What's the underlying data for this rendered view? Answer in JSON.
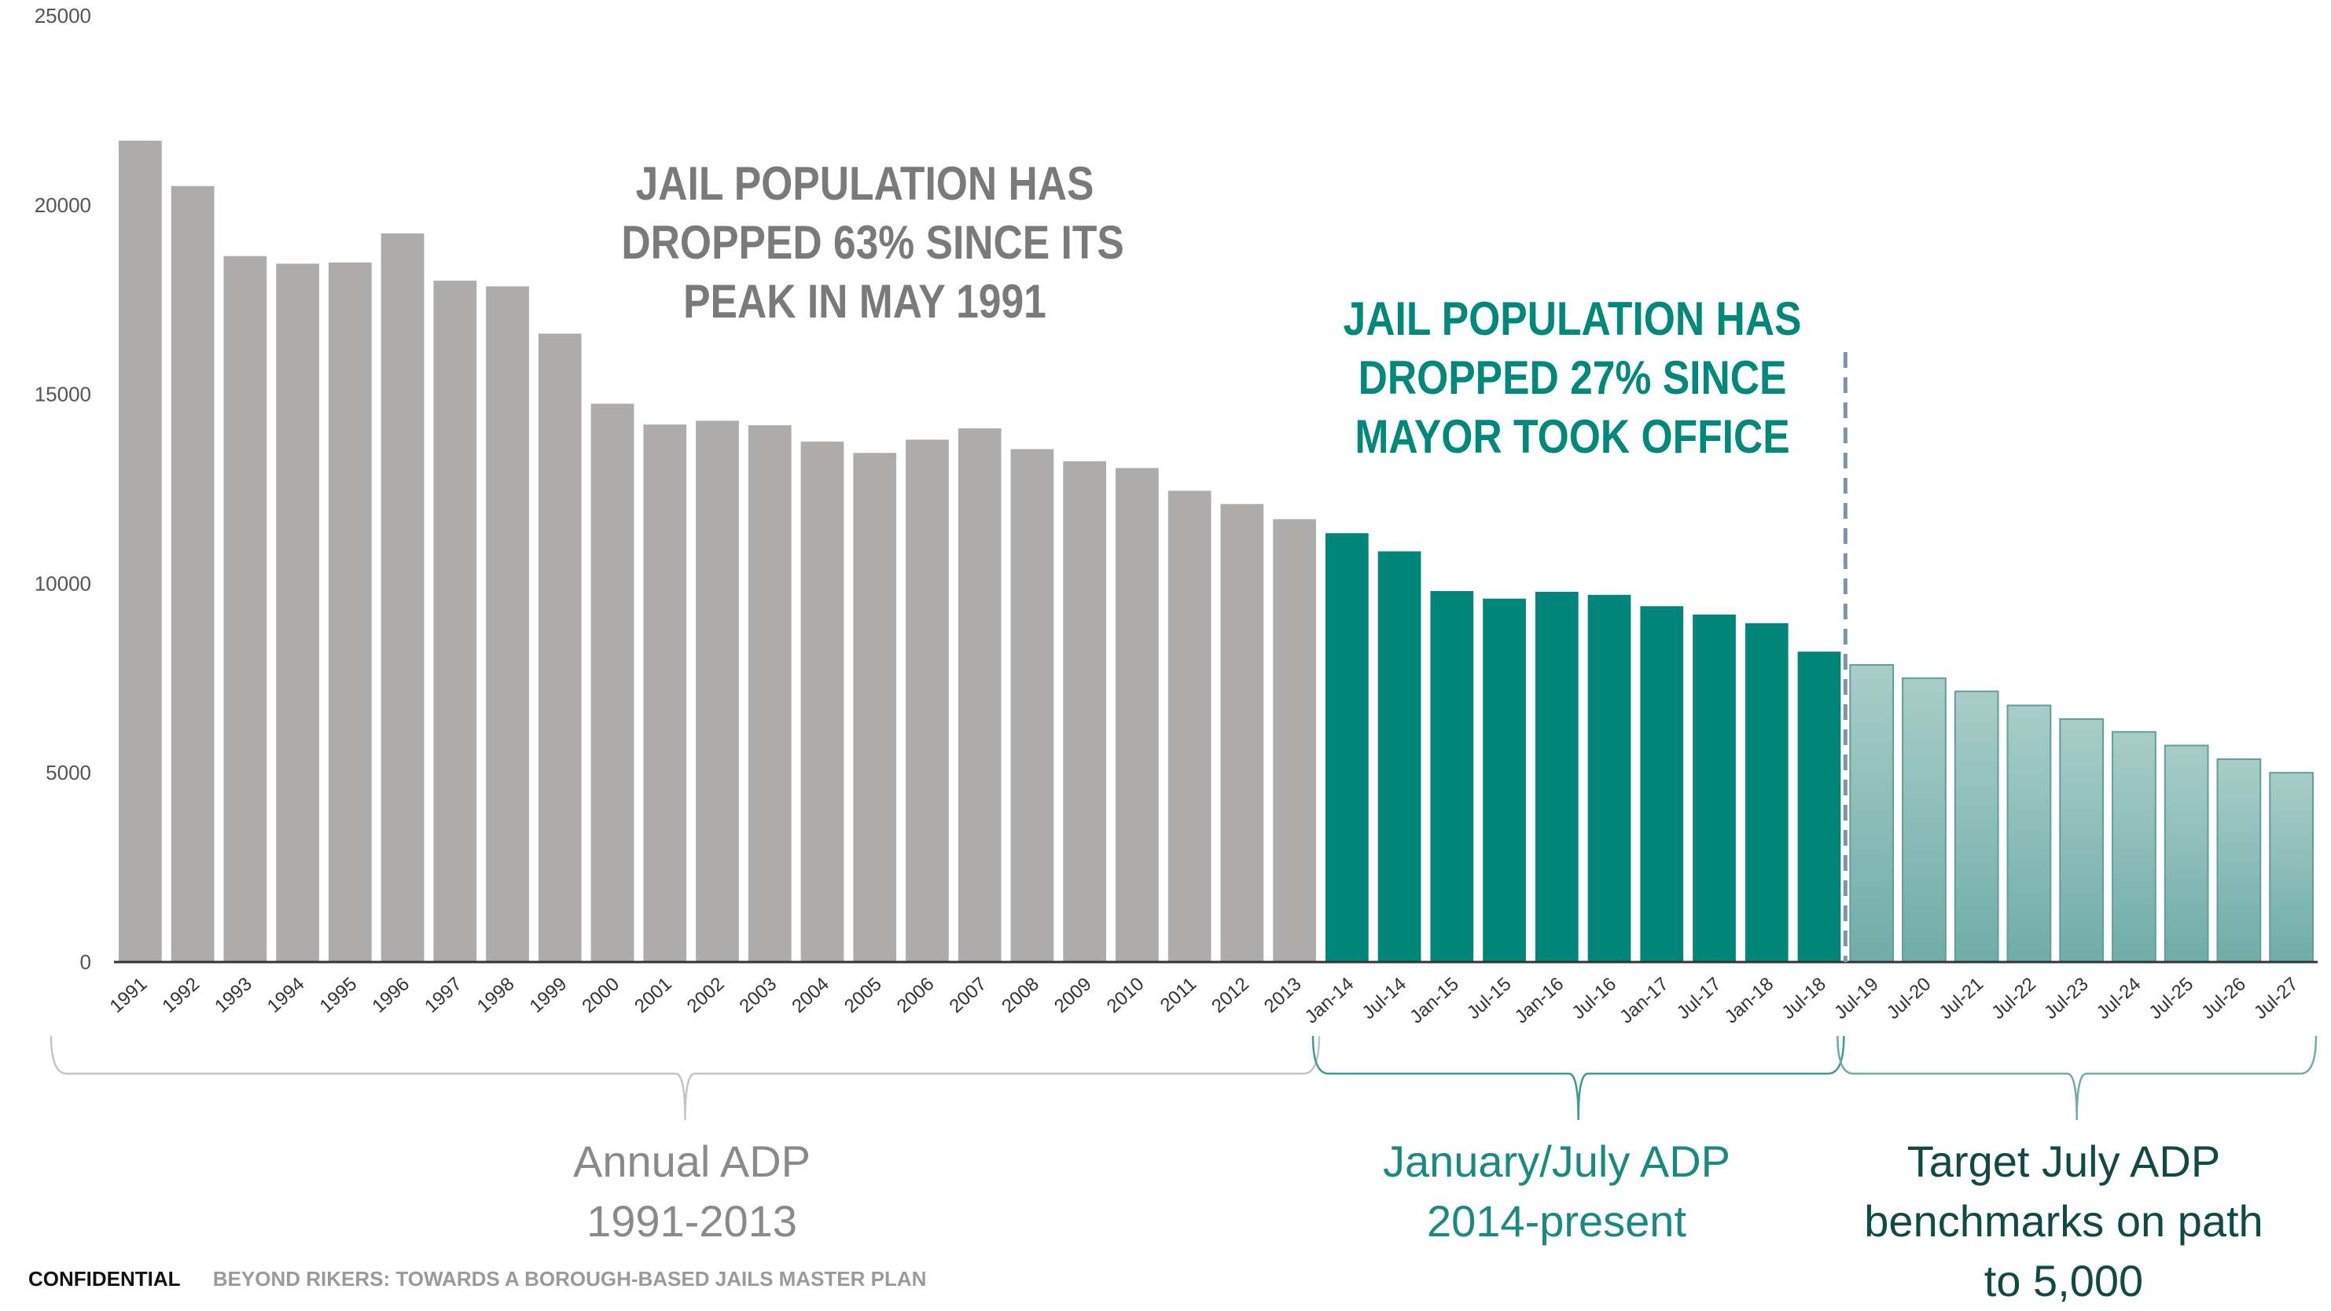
{
  "chart_data": {
    "type": "bar",
    "ylim": [
      0,
      25000
    ],
    "yticks": [
      0,
      5000,
      10000,
      15000,
      20000,
      25000
    ],
    "categories": [
      "1991",
      "1992",
      "1993",
      "1994",
      "1995",
      "1996",
      "1997",
      "1998",
      "1999",
      "2000",
      "2001",
      "2002",
      "2003",
      "2004",
      "2005",
      "2006",
      "2007",
      "2008",
      "2009",
      "2010",
      "2011",
      "2012",
      "2013",
      "Jan-14",
      "Jul-14",
      "Jan-15",
      "Jul-15",
      "Jan-16",
      "Jul-16",
      "Jan-17",
      "Jul-17",
      "Jan-18",
      "Jul-18",
      "Jul-19",
      "Jul-20",
      "Jul-21",
      "Jul-22",
      "Jul-23",
      "Jul-24",
      "Jul-25",
      "Jul-26",
      "Jul-27"
    ],
    "values": [
      21700,
      20500,
      18650,
      18450,
      18480,
      19250,
      18000,
      17850,
      16600,
      14750,
      14200,
      14300,
      14180,
      13750,
      13450,
      13800,
      14100,
      13550,
      13230,
      13050,
      12450,
      12100,
      11700,
      11330,
      10850,
      9800,
      9600,
      9780,
      9700,
      9400,
      9180,
      8950,
      8200,
      7850,
      7500,
      7150,
      6780,
      6420,
      6080,
      5720,
      5360,
      5000
    ],
    "groups": [
      {
        "name": "Annual ADP 1991-2013",
        "from": 0,
        "to": 22,
        "color": "#aeabab"
      },
      {
        "name": "January/July ADP 2014-present",
        "from": 23,
        "to": 32,
        "color": "#00857a"
      },
      {
        "name": "Target July ADP benchmarks on path to 5,000",
        "from": 33,
        "to": 41,
        "color": "#9cc6c1"
      }
    ],
    "divider_after_index": 32
  },
  "annotations": {
    "gray_lines": [
      "JAIL POPULATION HAS",
      "DROPPED 63% SINCE ITS",
      "PEAK IN MAY 1991"
    ],
    "teal_lines": [
      "JAIL POPULATION HAS",
      "DROPPED 27% SINCE",
      "MAYOR TOOK OFFICE"
    ]
  },
  "group_labels": {
    "annual": [
      "Annual ADP",
      "1991-2013"
    ],
    "jan_jul": [
      "January/July ADP",
      "2014-present"
    ],
    "target": [
      "Target July ADP",
      "benchmarks on path",
      "to 5,000"
    ]
  },
  "footer": {
    "confidential": "CONFIDENTIAL",
    "subtitle": "BEYOND RIKERS: TOWARDS A BOROUGH-BASED JAILS MASTER PLAN"
  },
  "colors": {
    "gray_bar": "#aeabab",
    "teal_bar": "#00857a",
    "target_bar_top": "#a8cdc8",
    "target_bar_bottom": "#6fada6",
    "divider": "#7f93ad"
  }
}
